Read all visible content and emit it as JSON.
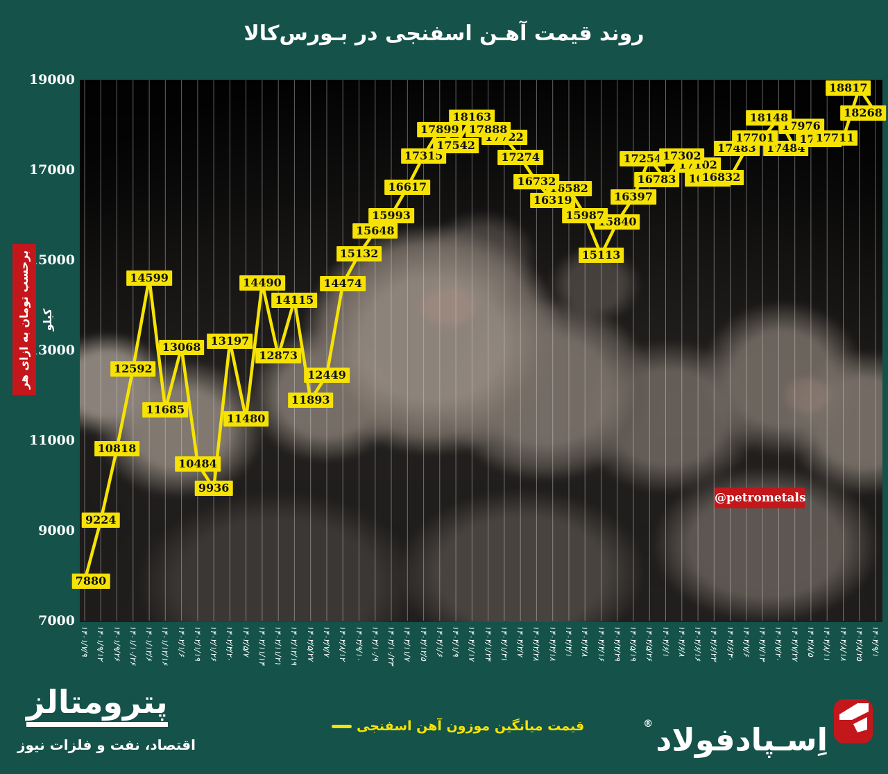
{
  "title": "روند قیمت آهـن اسفنجی در بـورس‌کالا",
  "y_axis_unit_label": "برحسب تومان به ازای هر کیلو",
  "watermark_badge": "@petrometals",
  "legend_label": "قیمت میانگین موزون آهن اسفنجی",
  "footer": {
    "publisher_name": "پترومتالز",
    "publisher_tagline": "اقتصاد، نفت و فلزات نیوز",
    "brand_name": "اِسـپادفولاد",
    "brand_registered_mark": "®"
  },
  "colors": {
    "background_teal": "#14524a",
    "accent_yellow": "#f6e303",
    "accent_red": "#c3171b",
    "data_label_text": "#131313",
    "axis_text": "#ffffff",
    "gridline": "#d6d6d6"
  },
  "chart_data": {
    "type": "line",
    "title": "روند قیمت آهـن اسفنجی در بـورس‌کالا",
    "series_name": "قیمت میانگین موزون آهن اسفنجی",
    "categories": [
      "۱۴۰۱/۷/۹",
      "۱۴۰۱/۹/۱۲",
      "۱۴۰۱/۹/۲۶",
      "۱۴۰۱/۱۰/۲۶",
      "۱۴۰۱/۱۲/۶",
      "۱۴۰۱/۱۲/۱۶",
      "۱۴۰۲/۱/۶",
      "۱۴۰۲/۱/۱۹",
      "۱۴۰۲/۱/۲۶",
      "۱۴۰۲/۳/۲۰",
      "۱۴۰۲/۵/۷",
      "۱۴۰۲/۱۱/۱۴",
      "۱۴۰۲/۱۱/۲۱",
      "۱۴۰۲/۱۲/۱۹",
      "۱۴۰۳/۵/۲۷",
      "۱۴۰۳/۷/۷",
      "۱۴۰۳/۸/۱۲",
      "۱۴۰۳/۹/۱۰",
      "۱۴۰۳/۱۰/۹",
      "۱۴۰۳/۱۰/۲۳",
      "۱۴۰۳/۱۱/۷",
      "۱۴۰۳/۱۲/۵",
      "۱۴۰۴/۱/۶",
      "۱۴۰۴/۱/۹",
      "۱۴۰۴/۱/۱۷",
      "۱۴۰۴/۱/۲۴",
      "۱۴۰۴/۱/۳۱",
      "۱۴۰۴/۲/۷",
      "۱۴۰۴/۲/۲۸",
      "۱۴۰۴/۳/۱۸",
      "۱۴۰۴/۴/۱",
      "۱۴۰۴/۴/۸",
      "۱۴۰۴/۴/۱۶",
      "۱۴۰۴/۴/۲۹",
      "۱۴۰۴/۵/۱۹",
      "۱۴۰۴/۵/۲۶",
      "۱۴۰۴/۶/۱",
      "۱۴۰۴/۶/۸",
      "۱۴۰۴/۶/۱۶",
      "۱۴۰۴/۶/۲۳",
      "۱۴۰۴/۶/۳۰",
      "۱۴۰۴/۷/۶",
      "۱۴۰۴/۷/۱۳",
      "۱۴۰۴/۷/۲۰",
      "۱۴۰۴/۷/۲۷",
      "۱۴۰۴/۸/۵",
      "۱۴۰۴/۸/۱۱",
      "۱۴۰۴/۸/۱۸",
      "۱۴۰۴/۸/۲۵",
      "۱۴۰۴/۹/۱"
    ],
    "values": [
      7880,
      9224,
      10818,
      12592,
      14599,
      11685,
      13068,
      10484,
      9936,
      13197,
      11480,
      14490,
      12873,
      14115,
      11893,
      12449,
      14474,
      15132,
      15648,
      15993,
      16617,
      17315,
      17899,
      17542,
      18163,
      17888,
      17722,
      17274,
      16732,
      16319,
      16582,
      15987,
      15113,
      15840,
      16397,
      17254,
      16783,
      17302,
      17102,
      16800,
      16832,
      17483,
      17701,
      18148,
      17484,
      17976,
      17680,
      17711,
      18817,
      18268
    ],
    "occluded_labels": {
      "26": "17888 — top edge of label hidden behind the 18163 label box",
      "40": "only «16» visible, rest hidden behind the 16832 label box; value estimated from line position",
      "47": "only «17» visible, rest hidden behind the 17711 label box; value estimated from line position"
    },
    "y_ticks": [
      19000,
      17000,
      15000,
      13000,
      11000,
      9000,
      7000
    ],
    "ylim": [
      7000,
      19000
    ],
    "grid": "vertical-only",
    "legend_position": "bottom-center",
    "data_label_boxes": "yellow boxes centered on each data point"
  }
}
